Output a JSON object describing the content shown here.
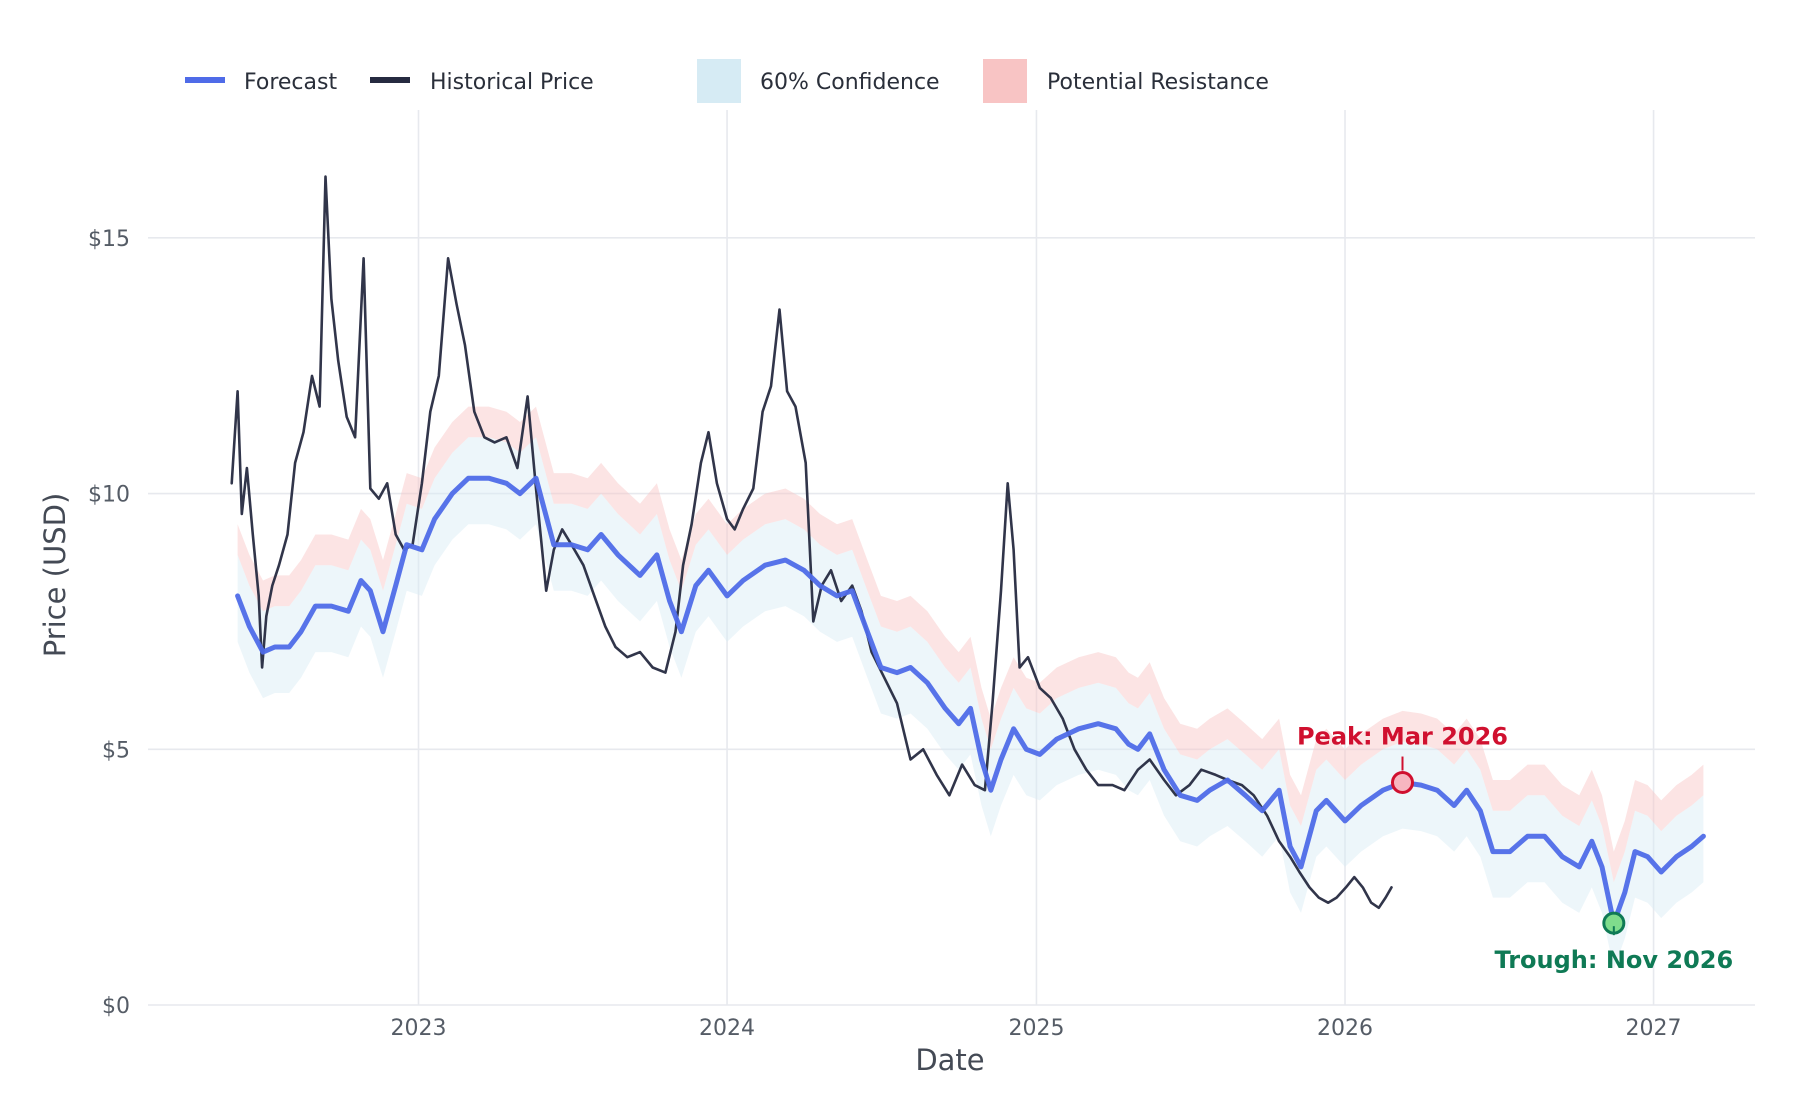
{
  "chart_data": {
    "type": "line",
    "xlabel": "Date",
    "ylabel": "Price (USD)",
    "xlim": [
      "2022-02-15",
      "2027-05-01"
    ],
    "ylim": [
      0,
      17.5
    ],
    "y_ticks": [
      {
        "value": 0,
        "label": "$0"
      },
      {
        "value": 5,
        "label": "$5"
      },
      {
        "value": 10,
        "label": "$10"
      },
      {
        "value": 15,
        "label": "$15"
      }
    ],
    "x_ticks": [
      {
        "date": "2023-01-01",
        "label": "2023"
      },
      {
        "date": "2024-01-01",
        "label": "2024"
      },
      {
        "date": "2025-01-01",
        "label": "2025"
      },
      {
        "date": "2026-01-01",
        "label": "2026"
      },
      {
        "date": "2027-01-01",
        "label": "2027"
      }
    ],
    "grid": true,
    "legend_position": "top",
    "legend": [
      {
        "label": "Forecast",
        "kind": "line",
        "color": "#4f6be8"
      },
      {
        "label": "Historical Price",
        "kind": "line",
        "color": "#262a40"
      },
      {
        "label": "60% Confidence",
        "kind": "patch",
        "color": "#d6ebf4"
      },
      {
        "label": "Potential Resistance",
        "kind": "patch",
        "color": "#f8c4c4"
      }
    ],
    "series": [
      {
        "name": "Historical Price",
        "color": "#262a40",
        "points": [
          [
            "2022-05-25",
            10.2
          ],
          [
            "2022-06-01",
            12.0
          ],
          [
            "2022-06-06",
            9.6
          ],
          [
            "2022-06-12",
            10.5
          ],
          [
            "2022-06-19",
            9.2
          ],
          [
            "2022-06-26",
            8.0
          ],
          [
            "2022-06-30",
            6.6
          ],
          [
            "2022-07-05",
            7.6
          ],
          [
            "2022-07-12",
            8.2
          ],
          [
            "2022-07-20",
            8.6
          ],
          [
            "2022-07-30",
            9.2
          ],
          [
            "2022-08-08",
            10.6
          ],
          [
            "2022-08-18",
            11.2
          ],
          [
            "2022-08-28",
            12.3
          ],
          [
            "2022-09-06",
            11.7
          ],
          [
            "2022-09-13",
            16.2
          ],
          [
            "2022-09-20",
            13.8
          ],
          [
            "2022-09-28",
            12.6
          ],
          [
            "2022-10-08",
            11.5
          ],
          [
            "2022-10-18",
            11.1
          ],
          [
            "2022-10-28",
            14.6
          ],
          [
            "2022-11-05",
            10.1
          ],
          [
            "2022-11-15",
            9.9
          ],
          [
            "2022-11-25",
            10.2
          ],
          [
            "2022-12-05",
            9.2
          ],
          [
            "2022-12-15",
            8.9
          ],
          [
            "2022-12-25",
            9.0
          ],
          [
            "2023-01-05",
            10.2
          ],
          [
            "2023-01-15",
            11.6
          ],
          [
            "2023-01-25",
            12.3
          ],
          [
            "2023-02-05",
            14.6
          ],
          [
            "2023-02-15",
            13.7
          ],
          [
            "2023-02-25",
            12.9
          ],
          [
            "2023-03-08",
            11.6
          ],
          [
            "2023-03-20",
            11.1
          ],
          [
            "2023-04-01",
            11.0
          ],
          [
            "2023-04-15",
            11.1
          ],
          [
            "2023-04-28",
            10.5
          ],
          [
            "2023-05-10",
            11.9
          ],
          [
            "2023-05-20",
            10.1
          ],
          [
            "2023-06-01",
            8.1
          ],
          [
            "2023-06-10",
            8.9
          ],
          [
            "2023-06-20",
            9.3
          ],
          [
            "2023-07-01",
            9.0
          ],
          [
            "2023-07-15",
            8.6
          ],
          [
            "2023-07-28",
            8.0
          ],
          [
            "2023-08-10",
            7.4
          ],
          [
            "2023-08-22",
            7.0
          ],
          [
            "2023-09-05",
            6.8
          ],
          [
            "2023-09-20",
            6.9
          ],
          [
            "2023-10-05",
            6.6
          ],
          [
            "2023-10-20",
            6.5
          ],
          [
            "2023-11-01",
            7.3
          ],
          [
            "2023-11-10",
            8.6
          ],
          [
            "2023-11-20",
            9.4
          ],
          [
            "2023-12-01",
            10.6
          ],
          [
            "2023-12-10",
            11.2
          ],
          [
            "2023-12-20",
            10.2
          ],
          [
            "2024-01-01",
            9.5
          ],
          [
            "2024-01-10",
            9.3
          ],
          [
            "2024-01-20",
            9.7
          ],
          [
            "2024-02-01",
            10.1
          ],
          [
            "2024-02-12",
            11.6
          ],
          [
            "2024-02-22",
            12.1
          ],
          [
            "2024-03-03",
            13.6
          ],
          [
            "2024-03-12",
            12.0
          ],
          [
            "2024-03-22",
            11.7
          ],
          [
            "2024-04-03",
            10.6
          ],
          [
            "2024-04-12",
            7.5
          ],
          [
            "2024-04-22",
            8.2
          ],
          [
            "2024-05-03",
            8.5
          ],
          [
            "2024-05-15",
            7.9
          ],
          [
            "2024-05-28",
            8.2
          ],
          [
            "2024-06-08",
            7.7
          ],
          [
            "2024-06-20",
            6.9
          ],
          [
            "2024-07-05",
            6.4
          ],
          [
            "2024-07-20",
            5.9
          ],
          [
            "2024-08-05",
            4.8
          ],
          [
            "2024-08-20",
            5.0
          ],
          [
            "2024-09-05",
            4.5
          ],
          [
            "2024-09-20",
            4.1
          ],
          [
            "2024-10-05",
            4.7
          ],
          [
            "2024-10-20",
            4.3
          ],
          [
            "2024-11-01",
            4.2
          ],
          [
            "2024-11-10",
            5.9
          ],
          [
            "2024-11-20",
            8.1
          ],
          [
            "2024-11-28",
            10.2
          ],
          [
            "2024-12-05",
            8.9
          ],
          [
            "2024-12-12",
            6.6
          ],
          [
            "2024-12-22",
            6.8
          ],
          [
            "2025-01-05",
            6.2
          ],
          [
            "2025-01-18",
            6.0
          ],
          [
            "2025-02-01",
            5.6
          ],
          [
            "2025-02-15",
            5.0
          ],
          [
            "2025-03-01",
            4.6
          ],
          [
            "2025-03-15",
            4.3
          ],
          [
            "2025-04-01",
            4.3
          ],
          [
            "2025-04-15",
            4.2
          ],
          [
            "2025-05-01",
            4.6
          ],
          [
            "2025-05-15",
            4.8
          ],
          [
            "2025-06-01",
            4.4
          ],
          [
            "2025-06-15",
            4.1
          ],
          [
            "2025-07-01",
            4.3
          ],
          [
            "2025-07-15",
            4.6
          ],
          [
            "2025-08-01",
            4.5
          ],
          [
            "2025-08-15",
            4.4
          ],
          [
            "2025-09-01",
            4.3
          ],
          [
            "2025-09-15",
            4.1
          ],
          [
            "2025-10-01",
            3.7
          ],
          [
            "2025-10-15",
            3.2
          ],
          [
            "2025-10-28",
            2.9
          ],
          [
            "2025-11-08",
            2.6
          ],
          [
            "2025-11-20",
            2.3
          ],
          [
            "2025-12-01",
            2.1
          ],
          [
            "2025-12-12",
            2.0
          ],
          [
            "2025-12-22",
            2.1
          ],
          [
            "2026-01-02",
            2.3
          ],
          [
            "2026-01-12",
            2.5
          ],
          [
            "2026-01-22",
            2.3
          ],
          [
            "2026-02-01",
            2.0
          ],
          [
            "2026-02-10",
            1.9
          ],
          [
            "2026-02-18",
            2.1
          ],
          [
            "2026-02-25",
            2.3
          ]
        ]
      },
      {
        "name": "Forecast",
        "color": "#4f6be8",
        "points": [
          [
            "2022-06-01",
            8.0
          ],
          [
            "2022-06-15",
            7.4
          ],
          [
            "2022-07-01",
            6.9
          ],
          [
            "2022-07-15",
            7.0
          ],
          [
            "2022-08-01",
            7.0
          ],
          [
            "2022-08-15",
            7.3
          ],
          [
            "2022-09-01",
            7.8
          ],
          [
            "2022-09-20",
            7.8
          ],
          [
            "2022-10-10",
            7.7
          ],
          [
            "2022-10-25",
            8.3
          ],
          [
            "2022-11-05",
            8.1
          ],
          [
            "2022-11-20",
            7.3
          ],
          [
            "2022-12-05",
            8.2
          ],
          [
            "2022-12-18",
            9.0
          ],
          [
            "2023-01-05",
            8.9
          ],
          [
            "2023-01-20",
            9.5
          ],
          [
            "2023-02-10",
            10.0
          ],
          [
            "2023-03-01",
            10.3
          ],
          [
            "2023-03-25",
            10.3
          ],
          [
            "2023-04-15",
            10.2
          ],
          [
            "2023-05-01",
            10.0
          ],
          [
            "2023-05-20",
            10.3
          ],
          [
            "2023-06-10",
            9.0
          ],
          [
            "2023-07-01",
            9.0
          ],
          [
            "2023-07-20",
            8.9
          ],
          [
            "2023-08-05",
            9.2
          ],
          [
            "2023-08-25",
            8.8
          ],
          [
            "2023-09-20",
            8.4
          ],
          [
            "2023-10-10",
            8.8
          ],
          [
            "2023-10-25",
            7.9
          ],
          [
            "2023-11-08",
            7.3
          ],
          [
            "2023-11-25",
            8.2
          ],
          [
            "2023-12-10",
            8.5
          ],
          [
            "2024-01-01",
            8.0
          ],
          [
            "2024-01-20",
            8.3
          ],
          [
            "2024-02-15",
            8.6
          ],
          [
            "2024-03-10",
            8.7
          ],
          [
            "2024-04-01",
            8.5
          ],
          [
            "2024-04-20",
            8.2
          ],
          [
            "2024-05-10",
            8.0
          ],
          [
            "2024-05-28",
            8.1
          ],
          [
            "2024-06-15",
            7.3
          ],
          [
            "2024-07-01",
            6.6
          ],
          [
            "2024-07-20",
            6.5
          ],
          [
            "2024-08-05",
            6.6
          ],
          [
            "2024-08-25",
            6.3
          ],
          [
            "2024-09-15",
            5.8
          ],
          [
            "2024-10-01",
            5.5
          ],
          [
            "2024-10-15",
            5.8
          ],
          [
            "2024-10-28",
            4.8
          ],
          [
            "2024-11-08",
            4.2
          ],
          [
            "2024-11-20",
            4.8
          ],
          [
            "2024-12-05",
            5.4
          ],
          [
            "2024-12-20",
            5.0
          ],
          [
            "2025-01-05",
            4.9
          ],
          [
            "2025-01-25",
            5.2
          ],
          [
            "2025-02-20",
            5.4
          ],
          [
            "2025-03-15",
            5.5
          ],
          [
            "2025-04-05",
            5.4
          ],
          [
            "2025-04-20",
            5.1
          ],
          [
            "2025-05-01",
            5.0
          ],
          [
            "2025-05-15",
            5.3
          ],
          [
            "2025-06-01",
            4.6
          ],
          [
            "2025-06-20",
            4.1
          ],
          [
            "2025-07-10",
            4.0
          ],
          [
            "2025-07-25",
            4.2
          ],
          [
            "2025-08-15",
            4.4
          ],
          [
            "2025-09-05",
            4.1
          ],
          [
            "2025-09-25",
            3.8
          ],
          [
            "2025-10-15",
            4.2
          ],
          [
            "2025-10-28",
            3.1
          ],
          [
            "2025-11-10",
            2.7
          ],
          [
            "2025-11-28",
            3.8
          ],
          [
            "2025-12-10",
            4.0
          ],
          [
            "2026-01-01",
            3.6
          ],
          [
            "2026-01-20",
            3.9
          ],
          [
            "2026-02-15",
            4.2
          ],
          [
            "2026-03-10",
            4.35
          ],
          [
            "2026-04-01",
            4.3
          ],
          [
            "2026-04-20",
            4.2
          ],
          [
            "2026-05-10",
            3.9
          ],
          [
            "2026-05-25",
            4.2
          ],
          [
            "2026-06-10",
            3.8
          ],
          [
            "2026-06-25",
            3.0
          ],
          [
            "2026-07-15",
            3.0
          ],
          [
            "2026-08-05",
            3.3
          ],
          [
            "2026-08-25",
            3.3
          ],
          [
            "2026-09-15",
            2.9
          ],
          [
            "2026-10-05",
            2.7
          ],
          [
            "2026-10-20",
            3.2
          ],
          [
            "2026-11-01",
            2.7
          ],
          [
            "2026-11-15",
            1.6
          ],
          [
            "2026-11-28",
            2.2
          ],
          [
            "2026-12-10",
            3.0
          ],
          [
            "2026-12-25",
            2.9
          ],
          [
            "2027-01-10",
            2.6
          ],
          [
            "2027-01-28",
            2.9
          ],
          [
            "2027-02-15",
            3.1
          ],
          [
            "2027-03-01",
            3.3
          ]
        ]
      }
    ],
    "bands": [
      {
        "name": "60% Confidence",
        "color": "#d6ebf4",
        "opacity": 0.45,
        "lower_offset": -0.9,
        "upper_offset": 0.8,
        "of_series": "Forecast"
      },
      {
        "name": "Potential Resistance",
        "color": "#f8c4c4",
        "opacity": 0.45,
        "lower_offset": 0.8,
        "upper_offset": 1.4,
        "of_series": "Forecast"
      }
    ],
    "annotations": [
      {
        "text": "Peak: Mar 2026",
        "date": "2026-03-10",
        "value": 4.35,
        "color": "#d0102f",
        "marker_fill": "#f7b6c0",
        "position": "above"
      },
      {
        "text": "Trough: Nov 2026",
        "date": "2026-11-15",
        "value": 1.6,
        "color": "#0f7a55",
        "marker_fill": "#7fdc8c",
        "position": "below"
      }
    ]
  }
}
